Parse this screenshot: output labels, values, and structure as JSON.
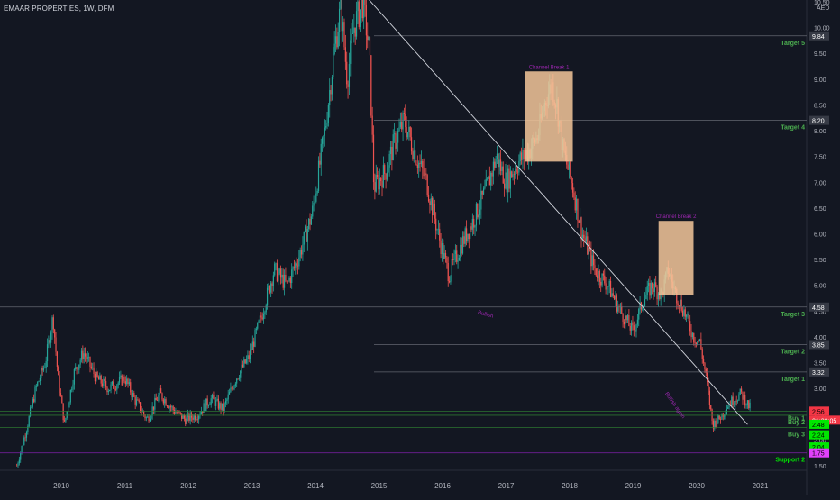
{
  "header": {
    "symbol_title": "EMAAR PROPERTIES, 1W, DFM",
    "currency": "AED"
  },
  "colors": {
    "background": "#131722",
    "up": "#26a69a",
    "down": "#ef5350",
    "level_line": "#6b6e78",
    "target_text": "#4caf50",
    "box_fill": "#f5c79a",
    "annotation": "#9c27b0",
    "trendline": "#d1d4dc",
    "buy_label": "#00e600",
    "current_label": "#f23645",
    "support_label": "#e040fb"
  },
  "chart_data": {
    "type": "candlestick",
    "title": "EMAAR PROPERTIES, 1W, DFM",
    "ylabel": "AED",
    "ylim": [
      1.2,
      10.5
    ],
    "y_ticks": [
      1.5,
      2.0,
      2.5,
      3.0,
      3.5,
      4.0,
      4.5,
      5.0,
      5.5,
      6.0,
      6.5,
      7.0,
      7.5,
      8.0,
      8.5,
      9.0,
      9.5,
      10.0,
      10.5
    ],
    "xlim": [
      2009.3,
      2021.0
    ],
    "x_ticks": [
      "2010",
      "2011",
      "2012",
      "2013",
      "2014",
      "2015",
      "2016",
      "2017",
      "2018",
      "2019",
      "2020",
      "2021"
    ],
    "price_path": [
      [
        2009.3,
        1.5
      ],
      [
        2009.45,
        2.2
      ],
      [
        2009.6,
        3.0
      ],
      [
        2009.75,
        3.5
      ],
      [
        2009.87,
        4.4
      ],
      [
        2009.95,
        3.2
      ],
      [
        2010.05,
        2.3
      ],
      [
        2010.2,
        3.3
      ],
      [
        2010.35,
        3.7
      ],
      [
        2010.55,
        3.2
      ],
      [
        2010.75,
        3.0
      ],
      [
        2011.0,
        3.2
      ],
      [
        2011.15,
        2.8
      ],
      [
        2011.35,
        2.4
      ],
      [
        2011.55,
        2.9
      ],
      [
        2011.75,
        2.6
      ],
      [
        2011.95,
        2.4
      ],
      [
        2012.15,
        2.5
      ],
      [
        2012.35,
        2.8
      ],
      [
        2012.55,
        2.6
      ],
      [
        2012.75,
        3.2
      ],
      [
        2012.95,
        3.6
      ],
      [
        2013.15,
        4.4
      ],
      [
        2013.35,
        5.3
      ],
      [
        2013.55,
        5.0
      ],
      [
        2013.75,
        5.6
      ],
      [
        2013.95,
        6.4
      ],
      [
        2014.15,
        8.0
      ],
      [
        2014.3,
        9.6
      ],
      [
        2014.4,
        10.4
      ],
      [
        2014.5,
        9.0
      ],
      [
        2014.6,
        10.0
      ],
      [
        2014.75,
        10.5
      ],
      [
        2014.85,
        9.5
      ],
      [
        2014.92,
        6.9
      ],
      [
        2015.1,
        7.2
      ],
      [
        2015.25,
        7.8
      ],
      [
        2015.4,
        8.2
      ],
      [
        2015.55,
        7.6
      ],
      [
        2015.75,
        7.0
      ],
      [
        2015.95,
        5.9
      ],
      [
        2016.1,
        5.2
      ],
      [
        2016.3,
        5.8
      ],
      [
        2016.5,
        6.3
      ],
      [
        2016.7,
        6.9
      ],
      [
        2016.85,
        7.5
      ],
      [
        2017.0,
        7.0
      ],
      [
        2017.2,
        7.4
      ],
      [
        2017.35,
        7.6
      ],
      [
        2017.5,
        7.9
      ],
      [
        2017.62,
        8.6
      ],
      [
        2017.72,
        8.9
      ],
      [
        2017.8,
        8.5
      ],
      [
        2017.9,
        7.6
      ],
      [
        2018.05,
        6.9
      ],
      [
        2018.2,
        6.0
      ],
      [
        2018.4,
        5.3
      ],
      [
        2018.6,
        5.0
      ],
      [
        2018.8,
        4.5
      ],
      [
        2019.0,
        4.1
      ],
      [
        2019.15,
        4.7
      ],
      [
        2019.3,
        5.0
      ],
      [
        2019.45,
        4.8
      ],
      [
        2019.55,
        5.3
      ],
      [
        2019.65,
        4.9
      ],
      [
        2019.8,
        4.5
      ],
      [
        2019.95,
        4.0
      ],
      [
        2020.05,
        3.9
      ],
      [
        2020.15,
        3.2
      ],
      [
        2020.25,
        2.3
      ],
      [
        2020.35,
        2.4
      ],
      [
        2020.5,
        2.7
      ],
      [
        2020.7,
        2.9
      ],
      [
        2020.85,
        2.6
      ]
    ],
    "levels": [
      {
        "name": "Target 5",
        "value": 9.84,
        "tag": "9.84"
      },
      {
        "name": "Target 4",
        "value": 8.2,
        "tag": "8.20"
      },
      {
        "name": "Target 3",
        "value": 4.58,
        "tag": "4.58"
      },
      {
        "name": "Target 2",
        "value": 3.85,
        "tag": "3.85"
      },
      {
        "name": "Target 1",
        "value": 3.32,
        "tag": "3.32"
      },
      {
        "name": "Buy 1",
        "value": 2.56,
        "tag": "2.56"
      },
      {
        "name": "Buy 2",
        "value": 2.48,
        "tag": "2.48"
      },
      {
        "name": "Buy 3",
        "value": 2.24,
        "tag": "2.24"
      },
      {
        "name": "Support 2",
        "value": 1.75,
        "tag": "1.75"
      }
    ],
    "price_tags": [
      {
        "value": 2.56,
        "text": "2.56",
        "sub": "01:30:05",
        "color": "#f23645"
      },
      {
        "value": 2.48,
        "text": "2.48",
        "color": "#00e600"
      },
      {
        "value": 2.24,
        "text": "2.24",
        "color": "#00e600"
      },
      {
        "value": 2.04,
        "text": "2.04",
        "color": "#00e600"
      },
      {
        "value": 1.75,
        "text": "1.75",
        "color": "#e040fb"
      }
    ],
    "boxes": [
      {
        "label": "Channel Break 1",
        "x0": 2017.3,
        "x1": 2018.05,
        "y0": 7.4,
        "y1": 9.15
      },
      {
        "label": "Channel Break 2",
        "x0": 2019.4,
        "x1": 2019.95,
        "y0": 4.82,
        "y1": 6.25
      }
    ],
    "annotations": [
      {
        "text": "Bullish",
        "x": 2016.55,
        "y": 4.45,
        "rotate": 15
      },
      {
        "text": "Bullish again",
        "x": 2019.5,
        "y": 2.9,
        "rotate": 55
      }
    ],
    "trendline": {
      "from": [
        2014.8,
        10.6
      ],
      "to": [
        2020.8,
        2.3
      ]
    }
  }
}
